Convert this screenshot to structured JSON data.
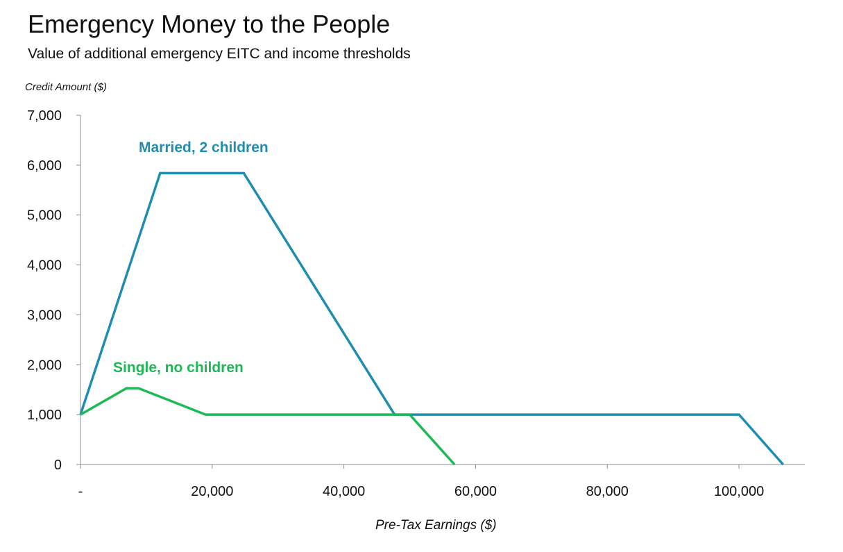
{
  "chart_data": {
    "type": "line",
    "title": "Emergency Money to the People",
    "subtitle": "Value of additional emergency EITC and income thresholds",
    "ylabel": "Credit Amount ($)",
    "xlabel": "Pre-Tax Earnings ($)",
    "xlim": [
      0,
      110000
    ],
    "ylim": [
      0,
      7000
    ],
    "x_ticks": [
      0,
      20000,
      40000,
      60000,
      80000,
      100000
    ],
    "x_tick_labels": [
      "-",
      "20,000",
      "40,000",
      "60,000",
      "80,000",
      "100,000"
    ],
    "y_ticks": [
      0,
      1000,
      2000,
      3000,
      4000,
      5000,
      6000,
      7000
    ],
    "y_tick_labels": [
      "0",
      "1,000",
      "2,000",
      "3,000",
      "4,000",
      "5,000",
      "6,000",
      "7,000"
    ],
    "grid": false,
    "legend": "inline labels",
    "series": [
      {
        "name": "Married, 2 children",
        "color": "#1F8DB0",
        "points": [
          {
            "x": 0,
            "y": 1000
          },
          {
            "x": 12100,
            "y": 5840
          },
          {
            "x": 24800,
            "y": 5840
          },
          {
            "x": 47700,
            "y": 1000
          },
          {
            "x": 100000,
            "y": 1000
          },
          {
            "x": 106700,
            "y": 0
          }
        ]
      },
      {
        "name": "Single, no children",
        "color": "#1DB954",
        "points": [
          {
            "x": 0,
            "y": 1000
          },
          {
            "x": 7000,
            "y": 1530
          },
          {
            "x": 8800,
            "y": 1530
          },
          {
            "x": 19000,
            "y": 1000
          },
          {
            "x": 50000,
            "y": 1000
          },
          {
            "x": 56800,
            "y": 0
          }
        ]
      }
    ]
  }
}
